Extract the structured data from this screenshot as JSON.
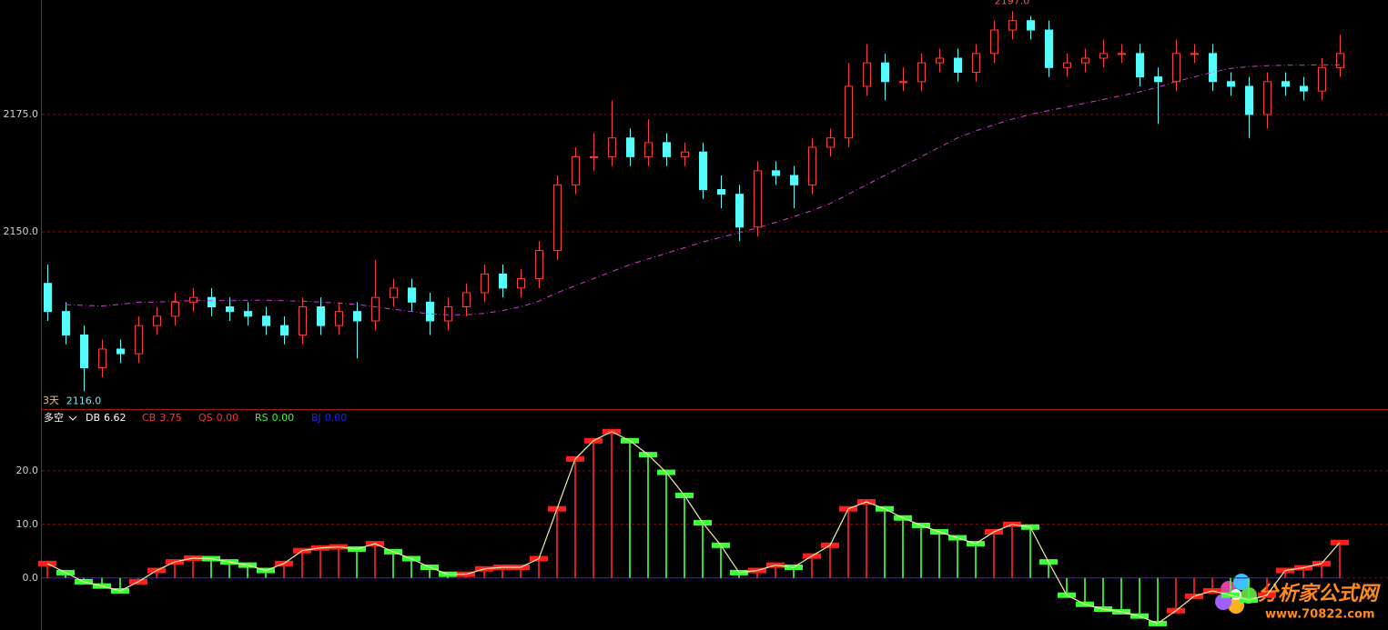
{
  "chart_data": [
    {
      "type": "candlestick",
      "period_label": "3天",
      "up_color": "#ff3c3c",
      "down_color": "#54fcfc",
      "grid": true,
      "ylim": [
        2112.2,
        2199.4
      ],
      "yticks": [
        {
          "value": 2150,
          "label": "2150.0"
        },
        {
          "value": 2175,
          "label": "2175.0"
        }
      ],
      "annotations": [
        {
          "label": "2197.0",
          "value": 2197,
          "color": "#ff5050"
        },
        {
          "label": "2116.0",
          "value": 2116,
          "color": "#54fcfc"
        }
      ],
      "open": [
        2139,
        2133,
        2128,
        2121,
        2125,
        2124,
        2130,
        2132,
        2135,
        2136,
        2134,
        2133,
        2132,
        2130,
        2128,
        2134,
        2130,
        2133,
        2131,
        2136,
        2138,
        2135,
        2131,
        2134,
        2137,
        2141,
        2138,
        2140,
        2146,
        2160,
        2166,
        2166,
        2170,
        2166,
        2169,
        2166,
        2167,
        2159,
        2158,
        2151,
        2163,
        2162,
        2160,
        2168,
        2170,
        2181,
        2186,
        2182,
        2182,
        2186,
        2187,
        2184,
        2188,
        2193,
        2195,
        2193,
        2185,
        2186,
        2187,
        2188,
        2188,
        2183,
        2182,
        2188,
        2188,
        2182,
        2181,
        2175,
        2182,
        2181,
        2180,
        2185
      ],
      "high": [
        2143,
        2135,
        2130,
        2127,
        2127,
        2132,
        2134,
        2137,
        2138,
        2138,
        2136,
        2135,
        2134,
        2132,
        2136,
        2136,
        2135,
        2135,
        2144,
        2140,
        2140,
        2137,
        2136,
        2139,
        2143,
        2143,
        2142,
        2148,
        2162,
        2168,
        2171,
        2178,
        2172,
        2174,
        2171,
        2169,
        2169,
        2162,
        2160,
        2165,
        2165,
        2164,
        2170,
        2172,
        2186,
        2190,
        2188,
        2185,
        2188,
        2189,
        2189,
        2190,
        2195,
        2197,
        2196,
        2195,
        2188,
        2189,
        2191,
        2190,
        2190,
        2185,
        2191,
        2190,
        2190,
        2184,
        2183,
        2184,
        2184,
        2183,
        2187,
        2192
      ],
      "low": [
        2131,
        2126,
        2116,
        2119,
        2122,
        2122,
        2128,
        2130,
        2133,
        2132,
        2131,
        2130,
        2128,
        2126,
        2126,
        2128,
        2128,
        2123,
        2129,
        2134,
        2133,
        2128,
        2129,
        2132,
        2135,
        2136,
        2136,
        2138,
        2144,
        2158,
        2163,
        2164,
        2164,
        2164,
        2164,
        2164,
        2157,
        2155,
        2148,
        2149,
        2160,
        2155,
        2158,
        2166,
        2168,
        2179,
        2178,
        2180,
        2180,
        2184,
        2182,
        2182,
        2186,
        2191,
        2191,
        2183,
        2183,
        2184,
        2185,
        2186,
        2181,
        2173,
        2180,
        2186,
        2180,
        2179,
        2170,
        2172,
        2179,
        2178,
        2178,
        2183
      ],
      "close": [
        2133,
        2128,
        2121,
        2125,
        2124,
        2130,
        2132,
        2135,
        2136,
        2134,
        2133,
        2132,
        2130,
        2128,
        2134,
        2130,
        2133,
        2131,
        2136,
        2138,
        2135,
        2131,
        2134,
        2137,
        2141,
        2138,
        2140,
        2146,
        2160,
        2166,
        2166,
        2170,
        2166,
        2169,
        2166,
        2167,
        2159,
        2158,
        2151,
        2163,
        2162,
        2160,
        2168,
        2170,
        2181,
        2186,
        2182,
        2182,
        2186,
        2187,
        2184,
        2188,
        2193,
        2195,
        2193,
        2185,
        2186,
        2187,
        2188,
        2188,
        2183,
        2182,
        2188,
        2188,
        2182,
        2181,
        2175,
        2182,
        2181,
        2180,
        2185,
        2188
      ],
      "ma": {
        "color": "#d23cd2",
        "values": [
          null,
          2134.5,
          2134.3,
          2134.2,
          2134.5,
          2135,
          2135,
          2135.2,
          2135.3,
          2135.3,
          2135.3,
          2135.4,
          2135.4,
          2135.3,
          2135.2,
          2135,
          2134.8,
          2134.5,
          2134,
          2133.5,
          2133,
          2132.5,
          2132.3,
          2132.3,
          2132.6,
          2133.2,
          2134,
          2135.2,
          2137,
          2138.5,
          2140,
          2141.5,
          2143,
          2144.2,
          2145.4,
          2146.6,
          2147.8,
          2148.8,
          2149.8,
          2150.8,
          2152,
          2153.2,
          2154.5,
          2156,
          2158,
          2160,
          2162,
          2164,
          2166,
          2168,
          2170,
          2171.5,
          2172.8,
          2174,
          2175,
          2175.8,
          2176.6,
          2177.4,
          2178.2,
          2179,
          2179.8,
          2180.8,
          2182,
          2183,
          2184,
          2184.8,
          2185.2,
          2185.4,
          2185.5,
          2185.5,
          2185.6,
          2185.6
        ]
      }
    },
    {
      "type": "bar-line",
      "title": "多空",
      "legend": [
        {
          "name": "DB",
          "value_label": "6.62",
          "color": "#ffffff"
        },
        {
          "name": "CB",
          "value_label": "3.75",
          "color": "#ff3232"
        },
        {
          "name": "QS",
          "value_label": "0.00",
          "color": "#ff3232"
        },
        {
          "name": "RS",
          "value_label": "0.00",
          "color": "#32ff32"
        },
        {
          "name": "BJ",
          "value_label": "0.00",
          "color": "#2020ff"
        }
      ],
      "up_color": "#ff1e1e",
      "down_color": "#3cff3c",
      "line_color": "#f0f0a0",
      "grid": true,
      "ylim": [
        -9.7,
        31.5
      ],
      "yticks": [
        {
          "value": 0,
          "label": "0.0"
        },
        {
          "value": 10,
          "label": "10.0"
        },
        {
          "value": 20,
          "label": "20.0"
        }
      ],
      "values": [
        2.7,
        1,
        -0.7,
        -1.5,
        -2.4,
        -0.7,
        1.4,
        3,
        3.7,
        3.6,
        3,
        2.4,
        1.4,
        2.7,
        5.1,
        5.6,
        5.8,
        5.4,
        6.4,
        4.9,
        3.6,
        2,
        0.7,
        0.7,
        1.7,
        2,
        2,
        3.6,
        12.9,
        22.2,
        25.6,
        27.3,
        25.6,
        23,
        19.7,
        15.4,
        10.3,
        6.1,
        1,
        1.4,
        2.4,
        2,
        4.1,
        6.1,
        12.9,
        14.2,
        12.9,
        11.2,
        9.8,
        8.6,
        7.5,
        6.4,
        8.6,
        10,
        9.5,
        3,
        -3.2,
        -4.9,
        -5.8,
        -6.3,
        -7.1,
        -8.5,
        -6.1,
        -3.4,
        -2.4,
        -3.2,
        -4.1,
        -3.2,
        1.4,
        1.9,
        2.7,
        6.62
      ]
    }
  ],
  "watermark": {
    "title": "分析家公式网",
    "url": "www.70822.com"
  }
}
